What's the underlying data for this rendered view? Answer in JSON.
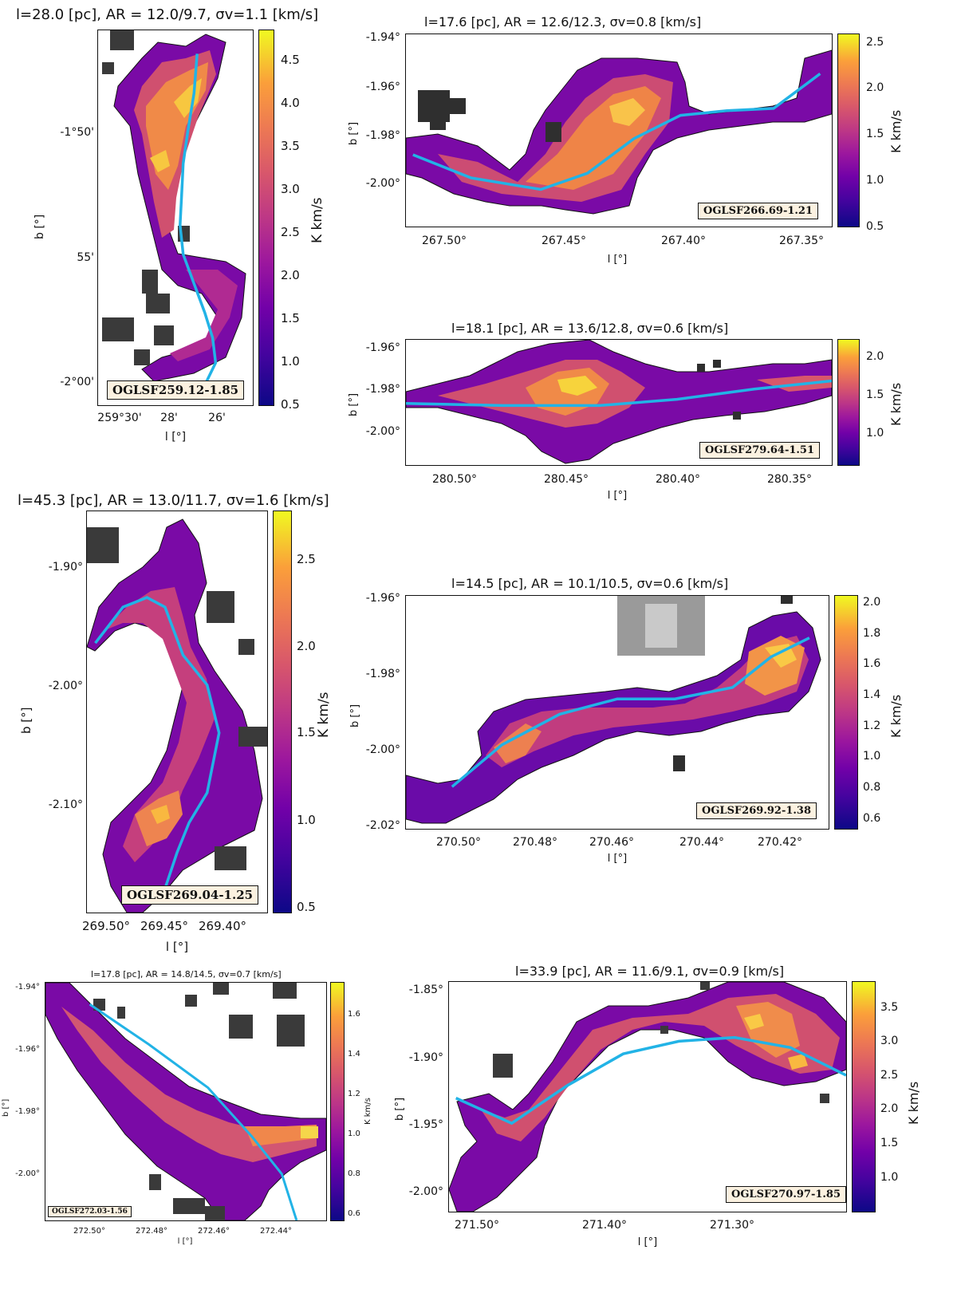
{
  "chart_data": [
    {
      "type": "heatmap",
      "id": "OGLSF259.12-1.85",
      "title": "l=28.0 [pc], AR = 12.0/9.7, σv=1.1 [km/s]",
      "xlabel": "l [°]",
      "ylabel": "b [°]",
      "xticks": [
        "259°30'",
        "28'",
        "26'"
      ],
      "yticks": [
        "-1°50'",
        "55'",
        "-2°00'"
      ],
      "colorbar_label": "K km/s",
      "colorbar_ticks": [
        "0.5",
        "1.0",
        "1.5",
        "2.0",
        "2.5",
        "3.0",
        "3.5",
        "4.0",
        "4.5"
      ],
      "clim": [
        0.5,
        4.7
      ],
      "spine_x_deg": [
        259.446,
        259.448,
        259.452,
        259.455,
        259.456,
        259.457,
        259.455,
        259.448,
        259.441,
        259.436,
        259.434,
        259.44,
        259.455
      ],
      "spine_y_deg": [
        -1.768,
        -1.795,
        -1.821,
        -1.843,
        -1.864,
        -1.885,
        -1.905,
        -1.925,
        -1.945,
        -1.962,
        -1.979,
        -1.992,
        -1.998
      ]
    },
    {
      "type": "heatmap",
      "id": "OGLSF266.69-1.21",
      "title": "l=17.6 [pc], AR = 12.6/12.3, σv=0.8 [km/s]",
      "xlabel": "l [°]",
      "ylabel": "b [°]",
      "xticks": [
        "267.50°",
        "267.45°",
        "267.40°",
        "267.35°"
      ],
      "yticks": [
        "-1.94°",
        "-1.96°",
        "-1.98°",
        "-2.00°"
      ],
      "colorbar_label": "K km/s",
      "colorbar_ticks": [
        "0.5",
        "1.0",
        "1.5",
        "2.0",
        "2.5"
      ],
      "clim": [
        0.5,
        2.6
      ],
      "spine_x_deg": [
        267.515,
        267.49,
        267.46,
        267.44,
        267.42,
        267.4,
        267.38,
        267.36,
        267.34
      ],
      "spine_y_deg": [
        -1.987,
        -1.997,
        -2.002,
        -1.995,
        -1.98,
        -1.97,
        -1.968,
        -1.967,
        -1.952
      ]
    },
    {
      "type": "heatmap",
      "id": "OGLSF279.64-1.51",
      "title": "l=18.1 [pc], AR = 13.6/12.8, σv=0.6 [km/s]",
      "xlabel": "l [°]",
      "ylabel": "b [°]",
      "xticks": [
        "280.50°",
        "280.45°",
        "280.40°",
        "280.35°"
      ],
      "yticks": [
        "-1.96°",
        "-1.98°",
        "-2.00°"
      ],
      "colorbar_label": "K km/s",
      "colorbar_ticks": [
        "1.0",
        "1.5",
        "2.0"
      ],
      "clim": [
        0.6,
        2.2
      ],
      "spine_x_deg": [
        280.52,
        280.47,
        280.42,
        280.38,
        280.34,
        280.3
      ],
      "spine_y_deg": [
        -1.986,
        -1.987,
        -1.987,
        -1.984,
        -1.979,
        -1.975
      ]
    },
    {
      "type": "heatmap",
      "id": "OGLSF269.04-1.25",
      "title": "l=45.3 [pc], AR = 13.0/11.7, σv=1.6 [km/s]",
      "xlabel": "l [°]",
      "ylabel": "b [°]",
      "xticks": [
        "269.50°",
        "269.45°",
        "269.40°"
      ],
      "yticks": [
        "-1.90°",
        "-2.00°",
        "-2.10°"
      ],
      "colorbar_label": "K km/s",
      "colorbar_ticks": [
        "0.5",
        "1.0",
        "1.5",
        "2.0",
        "2.5"
      ],
      "clim": [
        0.45,
        2.75
      ],
      "spine_x_deg": [
        269.513,
        269.49,
        269.47,
        269.455,
        269.44,
        269.42,
        269.41,
        269.42,
        269.435,
        269.445,
        269.455
      ],
      "spine_y_deg": [
        -1.965,
        -1.935,
        -1.927,
        -1.935,
        -1.975,
        -2.0,
        -2.04,
        -2.09,
        -2.115,
        -2.14,
        -2.17
      ]
    },
    {
      "type": "heatmap",
      "id": "OGLSF269.92-1.38",
      "title": "l=14.5 [pc], AR = 10.1/10.5, σv=0.6 [km/s]",
      "xlabel": "l [°]",
      "ylabel": "b [°]",
      "xticks": [
        "270.50°",
        "270.48°",
        "270.46°",
        "270.44°",
        "270.42°"
      ],
      "yticks": [
        "-1.96°",
        "-1.98°",
        "-2.00°",
        "-2.02°"
      ],
      "colorbar_label": "K km/s",
      "colorbar_ticks": [
        "0.6",
        "0.8",
        "1.0",
        "1.2",
        "1.4",
        "1.6",
        "1.8",
        "2.0"
      ],
      "clim": [
        0.55,
        2.05
      ],
      "spine_x_deg": [
        270.503,
        270.49,
        270.475,
        270.46,
        270.445,
        270.43,
        270.42,
        270.41
      ],
      "spine_y_deg": [
        -2.011,
        -2.0,
        -1.992,
        -1.988,
        -1.988,
        -1.985,
        -1.977,
        -1.972
      ]
    },
    {
      "type": "heatmap",
      "id": "OGLSF272.03-1.56",
      "title": "l=17.8 [pc], AR = 14.8/14.5, σv=0.7 [km/s]",
      "xlabel": "l [°]",
      "ylabel": "b [°]",
      "xticks": [
        "272.50°",
        "272.48°",
        "272.46°",
        "272.44°"
      ],
      "yticks": [
        "-1.94°",
        "-1.96°",
        "-1.98°",
        "-2.00°"
      ],
      "colorbar_label": "K km/s",
      "colorbar_ticks": [
        "0.6",
        "0.8",
        "1.0",
        "1.2",
        "1.4",
        "1.6"
      ],
      "clim": [
        0.55,
        1.75
      ],
      "spine_x_deg": [
        272.51,
        272.49,
        272.47,
        272.455,
        272.445,
        272.44
      ],
      "spine_y_deg": [
        -1.945,
        -1.958,
        -1.972,
        -1.988,
        -2.0,
        -2.015
      ]
    },
    {
      "type": "heatmap",
      "id": "OGLSF270.97-1.85",
      "title": "l=33.9 [pc], AR = 11.6/9.1, σv=0.9 [km/s]",
      "xlabel": "l [°]",
      "ylabel": "b [°]",
      "xticks": [
        "271.50°",
        "271.40°",
        "271.30°"
      ],
      "yticks": [
        "-1.85°",
        "-1.90°",
        "-1.95°",
        "-2.00°"
      ],
      "colorbar_label": "K km/s",
      "colorbar_ticks": [
        "1.0",
        "1.5",
        "2.0",
        "2.5",
        "3.0",
        "3.5"
      ],
      "clim": [
        0.6,
        3.85
      ],
      "spine_x_deg": [
        271.52,
        271.48,
        271.44,
        271.4,
        271.36,
        271.32,
        271.28,
        271.24
      ],
      "spine_y_deg": [
        -1.925,
        -1.945,
        -1.915,
        -1.89,
        -1.88,
        -1.877,
        -1.885,
        -1.907
      ]
    }
  ]
}
